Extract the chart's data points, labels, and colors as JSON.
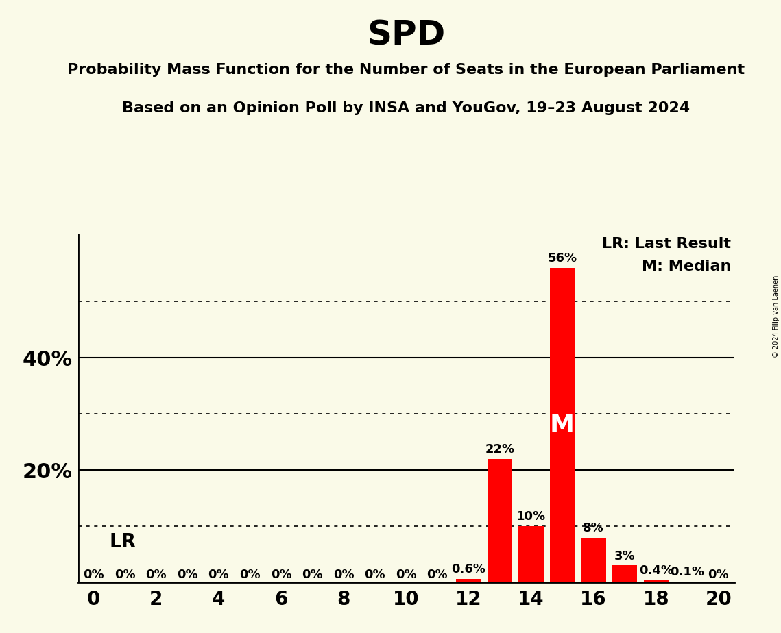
{
  "title": "SPD",
  "subtitle1": "Probability Mass Function for the Number of Seats in the European Parliament",
  "subtitle2": "Based on an Opinion Poll by INSA and YouGov, 19–23 August 2024",
  "copyright": "© 2024 Filip van Laenen",
  "bar_color": "#FF0000",
  "background_color": "#FAFAE8",
  "x_values": [
    0,
    1,
    2,
    3,
    4,
    5,
    6,
    7,
    8,
    9,
    10,
    11,
    12,
    13,
    14,
    15,
    16,
    17,
    18,
    19,
    20
  ],
  "y_values": [
    0,
    0,
    0,
    0,
    0,
    0,
    0,
    0,
    0,
    0,
    0,
    0,
    0.6,
    22,
    10,
    56,
    8,
    3,
    0.4,
    0.1,
    0
  ],
  "bar_labels": [
    "0%",
    "0%",
    "0%",
    "0%",
    "0%",
    "0%",
    "0%",
    "0%",
    "0%",
    "0%",
    "0%",
    "0%",
    "0.6%",
    "22%",
    "10%",
    "56%",
    "8%",
    "3%",
    "0.4%",
    "0.1%",
    "0%"
  ],
  "xlim": [
    -0.5,
    20.5
  ],
  "ylim": [
    0,
    62
  ],
  "xticks": [
    0,
    2,
    4,
    6,
    8,
    10,
    12,
    14,
    16,
    18,
    20
  ],
  "ytick_major": [
    20,
    40
  ],
  "ytick_minor": [
    10,
    30,
    50
  ],
  "ytick_labels": {
    "20": "20%",
    "40": "40%"
  },
  "legend_text1": "LR: Last Result",
  "legend_text2": "M: Median",
  "lr_x": 0.5,
  "lr_y": 5.5,
  "median_x": 15,
  "median_y": 28,
  "median_label": "M",
  "lr_label": "LR",
  "title_fontsize": 36,
  "subtitle_fontsize": 16,
  "ylabel_fontsize": 22,
  "xlabel_fontsize": 20,
  "bar_label_fontsize": 13,
  "legend_fontsize": 16
}
